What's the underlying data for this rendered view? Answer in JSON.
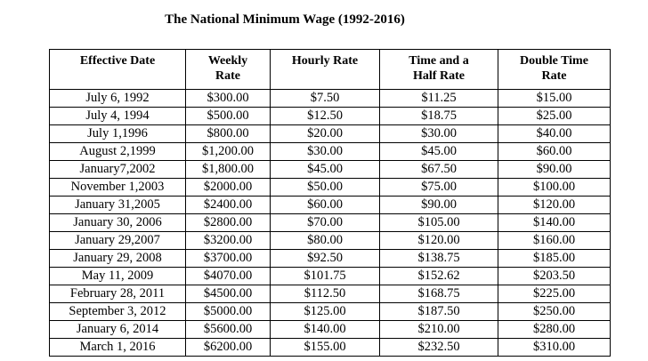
{
  "title": "The National Minimum Wage (1992-2016)",
  "headers": [
    [
      "Effective Date"
    ],
    [
      "Weekly",
      "Rate"
    ],
    [
      "Hourly Rate"
    ],
    [
      "Time and a",
      "Half Rate"
    ],
    [
      "Double Time",
      "Rate"
    ]
  ],
  "rows": [
    [
      "July 6, 1992",
      "$300.00",
      "$7.50",
      "$11.25",
      "$15.00"
    ],
    [
      "July 4, 1994",
      "$500.00",
      "$12.50",
      "$18.75",
      "$25.00"
    ],
    [
      "July 1,1996",
      "$800.00",
      "$20.00",
      "$30.00",
      "$40.00"
    ],
    [
      "August 2,1999",
      "$1,200.00",
      "$30.00",
      "$45.00",
      "$60.00"
    ],
    [
      "January7,2002",
      "$1,800.00",
      "$45.00",
      "$67.50",
      "$90.00"
    ],
    [
      "November 1,2003",
      "$2000.00",
      "$50.00",
      "$75.00",
      "$100.00"
    ],
    [
      "January 31,2005",
      "$2400.00",
      "$60.00",
      "$90.00",
      "$120.00"
    ],
    [
      "January 30, 2006",
      "$2800.00",
      "$70.00",
      "$105.00",
      "$140.00"
    ],
    [
      "January 29,2007",
      "$3200.00",
      "$80.00",
      "$120.00",
      "$160.00"
    ],
    [
      "January 29, 2008",
      "$3700.00",
      "$92.50",
      "$138.75",
      "$185.00"
    ],
    [
      "May 11, 2009",
      "$4070.00",
      "$101.75",
      "$152.62",
      "$203.50"
    ],
    [
      "February 28, 2011",
      "$4500.00",
      "$112.50",
      "$168.75",
      "$225.00"
    ],
    [
      "September 3, 2012",
      "$5000.00",
      "$125.00",
      "$187.50",
      "$250.00"
    ],
    [
      "January 6, 2014",
      "$5600.00",
      "$140.00",
      "$210.00",
      "$280.00"
    ],
    [
      "March 1, 2016",
      "$6200.00",
      "$155.00",
      "$232.50",
      "$310.00"
    ]
  ]
}
